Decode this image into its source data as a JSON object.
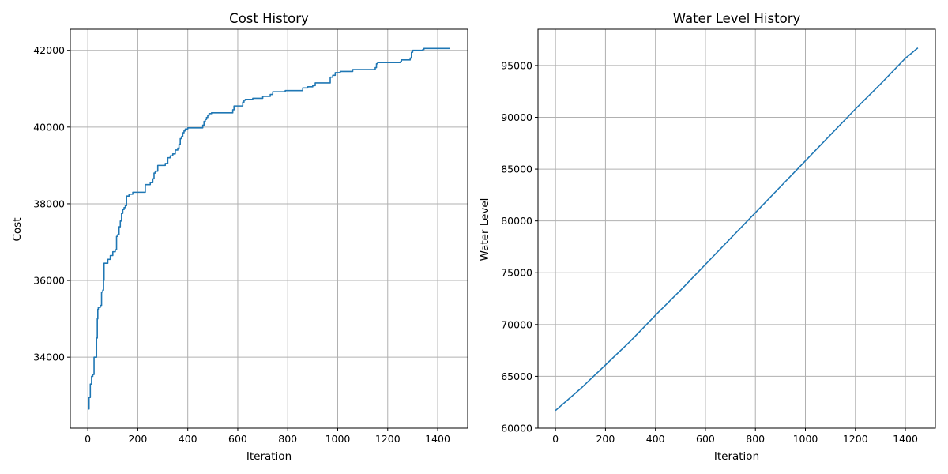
{
  "chart_data": [
    {
      "type": "line",
      "title": "Cost History",
      "xlabel": "Iteration",
      "ylabel": "Cost",
      "xlim": [
        -70,
        1520
      ],
      "ylim": [
        32150,
        42550
      ],
      "xticks": [
        0,
        200,
        400,
        600,
        800,
        1000,
        1200,
        1400
      ],
      "yticks": [
        34000,
        36000,
        38000,
        40000,
        42000
      ],
      "grid": true,
      "color": "#1f77b4",
      "step": true,
      "series": [
        {
          "x": [
            0,
            5,
            10,
            15,
            20,
            25,
            30,
            35,
            38,
            40,
            42,
            50,
            55,
            60,
            63,
            65,
            68,
            70,
            80,
            90,
            100,
            110,
            115,
            120,
            125,
            130,
            135,
            140,
            145,
            150,
            155,
            165,
            170,
            180,
            200,
            230,
            250,
            260,
            265,
            270,
            280,
            310,
            320,
            330,
            340,
            350,
            360,
            365,
            370,
            375,
            380,
            385,
            390,
            400,
            450,
            460,
            465,
            470,
            475,
            480,
            485,
            490,
            495,
            580,
            585,
            620,
            625,
            630,
            660,
            700,
            730,
            740,
            790,
            860,
            880,
            900,
            910,
            960,
            970,
            980,
            990,
            1010,
            1060,
            1150,
            1155,
            1160,
            1250,
            1255,
            1290,
            1295,
            1300,
            1340,
            1345,
            1450
          ],
          "y": [
            32650,
            32950,
            33300,
            33500,
            33550,
            34000,
            34000,
            34500,
            35000,
            35250,
            35300,
            35350,
            35700,
            35750,
            36000,
            36450,
            36450,
            36450,
            36550,
            36650,
            36750,
            36800,
            37150,
            37200,
            37400,
            37550,
            37750,
            37850,
            37900,
            37950,
            38200,
            38250,
            38250,
            38300,
            38300,
            38500,
            38550,
            38650,
            38800,
            38850,
            39000,
            39050,
            39200,
            39250,
            39300,
            39400,
            39450,
            39550,
            39700,
            39750,
            39850,
            39900,
            39950,
            39980,
            39980,
            40050,
            40150,
            40200,
            40250,
            40300,
            40350,
            40350,
            40370,
            40450,
            40550,
            40650,
            40700,
            40720,
            40750,
            40800,
            40850,
            40920,
            40950,
            41020,
            41050,
            41080,
            41150,
            41150,
            41300,
            41350,
            41420,
            41450,
            41500,
            41550,
            41650,
            41680,
            41700,
            41750,
            41800,
            41950,
            42000,
            42020,
            42050,
            42050
          ]
        }
      ]
    },
    {
      "type": "line",
      "title": "Water Level History",
      "xlabel": "Iteration",
      "ylabel": "Water Level",
      "xlim": [
        -70,
        1520
      ],
      "ylim": [
        60000,
        98500
      ],
      "xticks": [
        0,
        200,
        400,
        600,
        800,
        1000,
        1200,
        1400
      ],
      "yticks": [
        60000,
        65000,
        70000,
        75000,
        80000,
        85000,
        90000,
        95000
      ],
      "grid": true,
      "color": "#1f77b4",
      "step": false,
      "series": [
        {
          "x": [
            0,
            100,
            200,
            300,
            400,
            500,
            600,
            700,
            800,
            900,
            1000,
            1100,
            1200,
            1300,
            1400,
            1450
          ],
          "y": [
            61700,
            63800,
            66100,
            68400,
            70900,
            73300,
            75800,
            78300,
            80800,
            83300,
            85800,
            88300,
            90800,
            93200,
            95700,
            96700
          ]
        }
      ]
    }
  ]
}
